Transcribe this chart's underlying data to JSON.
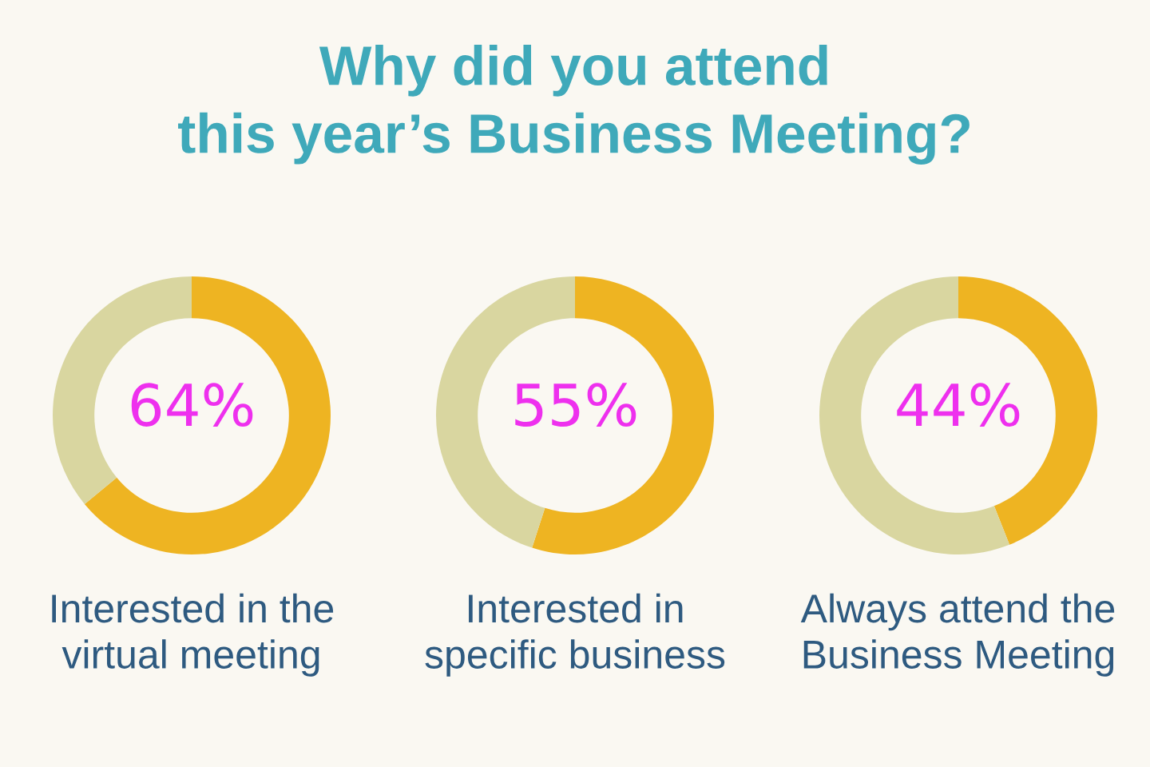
{
  "chart_data": [
    {
      "type": "donut",
      "title": "Why did you attend\nthis year’s Business Meeting?",
      "categories": [
        null,
        null
      ],
      "values": [
        64,
        36
      ],
      "colors": [
        "#eeb422",
        "#d9d6a0"
      ],
      "value_labels": [
        "64%",
        null
      ],
      "xlabel": "Interested in the\nvirtual meeting"
    },
    {
      "type": "donut",
      "categories": [
        null,
        null
      ],
      "values": [
        55,
        45
      ],
      "colors": [
        "#eeb422",
        "#d9d6a0"
      ],
      "value_labels": [
        "55%",
        null
      ],
      "xlabel": "Interested in\nspecific business"
    },
    {
      "type": "donut",
      "categories": [
        null,
        null
      ],
      "values": [
        44,
        56
      ],
      "colors": [
        "#eeb422",
        "#d9d6a0"
      ],
      "value_labels": [
        "44%",
        null
      ],
      "xlabel": "Always attend the\nBusiness Meeting"
    }
  ]
}
